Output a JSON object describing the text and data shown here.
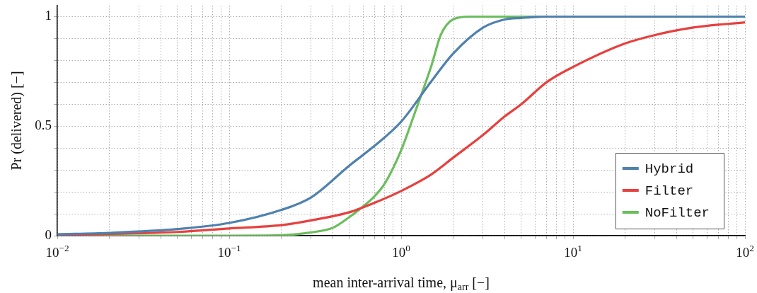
{
  "chart_data": {
    "type": "line",
    "xlabel": "mean inter-arrival time, μ$_{arr}$ [−]",
    "ylabel": "Pr (delivered) [−]",
    "log": "x",
    "xlim": [
      0.01,
      100
    ],
    "ylim": [
      0,
      1.05
    ],
    "xticks": [
      {
        "value": 0.01,
        "label": "10$^{−2}$"
      },
      {
        "value": 0.02,
        "label": null
      },
      {
        "value": 0.03,
        "label": null
      },
      {
        "value": 0.04,
        "label": null
      },
      {
        "value": 0.05,
        "label": null
      },
      {
        "value": 0.06,
        "label": null
      },
      {
        "value": 0.07,
        "label": null
      },
      {
        "value": 0.08,
        "label": null
      },
      {
        "value": 0.09,
        "label": null
      },
      {
        "value": 0.1,
        "label": "10$^{−1}$"
      },
      {
        "value": 0.2,
        "label": null
      },
      {
        "value": 0.3,
        "label": null
      },
      {
        "value": 0.4,
        "label": null
      },
      {
        "value": 0.5,
        "label": null
      },
      {
        "value": 0.6,
        "label": null
      },
      {
        "value": 0.7,
        "label": null
      },
      {
        "value": 0.8,
        "label": null
      },
      {
        "value": 0.9,
        "label": null
      },
      {
        "value": 1,
        "label": "10$^{0}$"
      },
      {
        "value": 2,
        "label": null
      },
      {
        "value": 3,
        "label": null
      },
      {
        "value": 4,
        "label": null
      },
      {
        "value": 5,
        "label": null
      },
      {
        "value": 6,
        "label": null
      },
      {
        "value": 7,
        "label": null
      },
      {
        "value": 8,
        "label": null
      },
      {
        "value": 9,
        "label": null
      },
      {
        "value": 10,
        "label": "10$^{1}$"
      },
      {
        "value": 20,
        "label": null
      },
      {
        "value": 30,
        "label": null
      },
      {
        "value": 40,
        "label": null
      },
      {
        "value": 50,
        "label": null
      },
      {
        "value": 60,
        "label": null
      },
      {
        "value": 70,
        "label": null
      },
      {
        "value": 80,
        "label": null
      },
      {
        "value": 90,
        "label": null
      },
      {
        "value": 100,
        "label": "10$^{2}$"
      }
    ],
    "yticks": [
      0,
      {
        "value": 0.1,
        "label": null
      },
      {
        "value": 0.2,
        "label": null
      },
      {
        "value": 0.3,
        "label": null
      },
      {
        "value": 0.4,
        "label": null
      },
      0.5,
      {
        "value": 0.6,
        "label": null
      },
      {
        "value": 0.7,
        "label": null
      },
      {
        "value": 0.8,
        "label": null
      },
      {
        "value": 0.9,
        "label": null
      },
      1
    ],
    "grid": true,
    "legend": "bottom right",
    "series": [
      {
        "name": "Hybrid",
        "color": "#4f81ae",
        "x": [
          0.01,
          0.02,
          0.05,
          0.1,
          0.2,
          0.3,
          0.5,
          0.7,
          1,
          1.5,
          2,
          3,
          4,
          5,
          7,
          10,
          100
        ],
        "values": [
          0.007,
          0.013,
          0.03,
          0.058,
          0.117,
          0.175,
          0.32,
          0.41,
          0.52,
          0.705,
          0.83,
          0.95,
          0.987,
          0.994,
          1,
          1,
          1
        ]
      },
      {
        "name": "Filter",
        "color": "#e5413f",
        "x": [
          0.01,
          0.05,
          0.1,
          0.2,
          0.3,
          0.5,
          0.7,
          1,
          1.5,
          2,
          3,
          4,
          5,
          7,
          10,
          20,
          30,
          50,
          100
        ],
        "values": [
          0.003,
          0.017,
          0.033,
          0.048,
          0.07,
          0.107,
          0.15,
          0.204,
          0.28,
          0.355,
          0.46,
          0.544,
          0.6,
          0.7,
          0.77,
          0.877,
          0.916,
          0.95,
          0.974
        ]
      },
      {
        "name": "NoFilter",
        "color": "#6bbd5d",
        "x": [
          0.01,
          0.1,
          0.2,
          0.3,
          0.4,
          0.5,
          0.6,
          0.7,
          0.8,
          1,
          1.2,
          1.5,
          1.7,
          2,
          2.5,
          100
        ],
        "values": [
          0,
          0,
          0.002,
          0.015,
          0.036,
          0.085,
          0.133,
          0.18,
          0.236,
          0.39,
          0.56,
          0.776,
          0.916,
          0.987,
          1,
          1
        ]
      }
    ]
  }
}
